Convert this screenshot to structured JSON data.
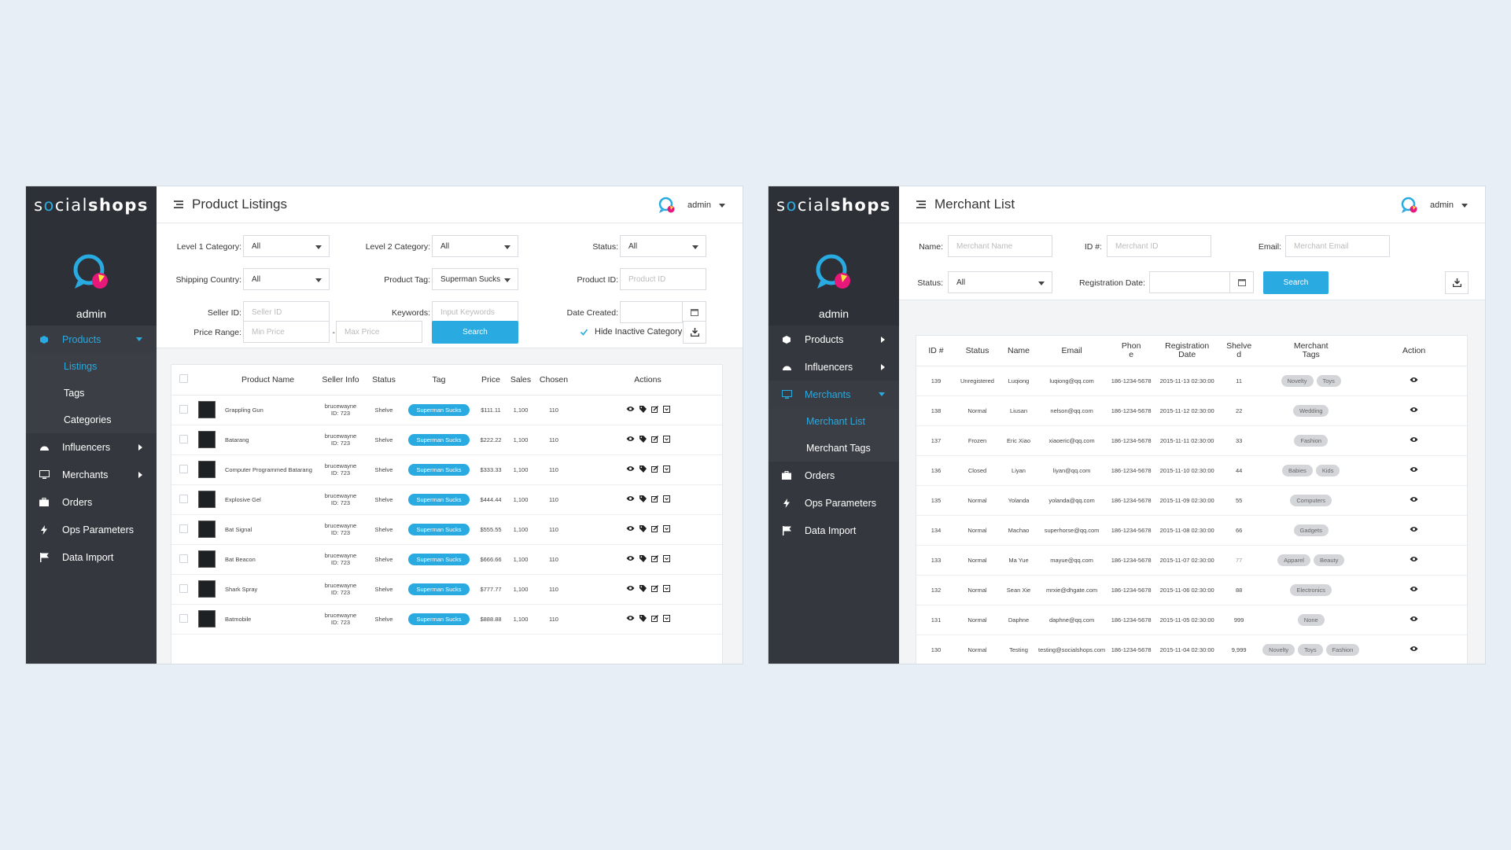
{
  "colors": {
    "accent": "#29aae1",
    "sidebar": "#2d3036",
    "logo_blue": "#29aae1",
    "logo_pink": "#e8187a",
    "logo_yellow": "#f5e53a"
  },
  "brand": {
    "light": "s",
    "o": "o",
    "mid": "cial",
    "bold": "shops"
  },
  "left": {
    "admin_name": "admin",
    "page_title": "Product Listings",
    "user": "admin",
    "nav": {
      "products": "Products",
      "listings": "Listings",
      "tags": "Tags",
      "categories": "Categories",
      "influencers": "Influencers",
      "merchants": "Merchants",
      "orders": "Orders",
      "ops": "Ops Parameters",
      "import": "Data Import"
    },
    "filters": {
      "l1_label": "Level 1 Category:",
      "l1_value": "All",
      "l2_label": "Level 2 Category:",
      "l2_value": "All",
      "status_label": "Status:",
      "status_value": "All",
      "ship_label": "Shipping Country:",
      "ship_value": "All",
      "tag_label": "Product Tag:",
      "tag_value": "Superman Sucks",
      "pid_label": "Product ID:",
      "pid_ph": "Product ID",
      "seller_label": "Seller ID:",
      "seller_ph": "Seller ID",
      "kw_label": "Keywords:",
      "kw_ph": "Input Keywords",
      "date_label": "Date Created:",
      "price_label": "Price Range:",
      "min_ph": "Min Price",
      "dash": "-",
      "max_ph": "Max Price",
      "search": "Search",
      "hide_inactive": "Hide Inactive Category"
    },
    "table": {
      "headers": [
        "Product Name",
        "Seller Info",
        "Status",
        "Tag",
        "Price",
        "Sales",
        "Chosen",
        "Actions"
      ],
      "rows": [
        {
          "name": "Grappling Gun",
          "seller1": "brucewayne",
          "seller2": "ID: 723",
          "status": "Shelve",
          "tag": "Superman Sucks",
          "price": "$111.11",
          "sales": "1,100",
          "chosen": "110"
        },
        {
          "name": "Batarang",
          "seller1": "brucewayne",
          "seller2": "ID: 723",
          "status": "Shelve",
          "tag": "Superman Sucks",
          "price": "$222.22",
          "sales": "1,100",
          "chosen": "110"
        },
        {
          "name": "Computer Programmed Batarang",
          "seller1": "brucewayne",
          "seller2": "ID: 723",
          "status": "Shelve",
          "tag": "Superman Sucks",
          "price": "$333.33",
          "sales": "1,100",
          "chosen": "110"
        },
        {
          "name": "Explosive Gel",
          "seller1": "brucewayne",
          "seller2": "ID: 723",
          "status": "Shelve",
          "tag": "Superman Sucks",
          "price": "$444.44",
          "sales": "1,100",
          "chosen": "110"
        },
        {
          "name": "Bat Signal",
          "seller1": "brucewayne",
          "seller2": "ID: 723",
          "status": "Shelve",
          "tag": "Superman Sucks",
          "price": "$555.55",
          "sales": "1,100",
          "chosen": "110"
        },
        {
          "name": "Bat Beacon",
          "seller1": "brucewayne",
          "seller2": "ID: 723",
          "status": "Shelve",
          "tag": "Superman Sucks",
          "price": "$666.66",
          "sales": "1,100",
          "chosen": "110"
        },
        {
          "name": "Shark Spray",
          "seller1": "brucewayne",
          "seller2": "ID: 723",
          "status": "Shelve",
          "tag": "Superman Sucks",
          "price": "$777.77",
          "sales": "1,100",
          "chosen": "110"
        },
        {
          "name": "Batmobile",
          "seller1": "brucewayne",
          "seller2": "ID: 723",
          "status": "Shelve",
          "tag": "Superman Sucks",
          "price": "$888.88",
          "sales": "1,100",
          "chosen": "110"
        }
      ]
    }
  },
  "right": {
    "admin_name": "admin",
    "page_title": "Merchant List",
    "user": "admin",
    "nav": {
      "products": "Products",
      "influencers": "Influencers",
      "merchants": "Merchants",
      "merchant_list": "Merchant List",
      "merchant_tags": "Merchant Tags",
      "orders": "Orders",
      "ops": "Ops Parameters",
      "import": "Data Import"
    },
    "filters": {
      "name_label": "Name:",
      "name_ph": "Merchant Name",
      "id_label": "ID #:",
      "id_ph": "Merchant ID",
      "email_label": "Email:",
      "email_ph": "Merchant Email",
      "status_label": "Status:",
      "status_value": "All",
      "reg_label": "Registration Date:",
      "search": "Search"
    },
    "table": {
      "headers": {
        "id": "ID #",
        "status": "Status",
        "name": "Name",
        "email": "Email",
        "phone1": "Phon",
        "phone2": "e",
        "reg1": "Registration",
        "reg2": "Date",
        "shelved1": "Shelve",
        "shelved2": "d",
        "tags1": "Merchant",
        "tags2": "Tags",
        "action": "Action"
      },
      "rows": [
        {
          "id": "139",
          "status": "Unregistered",
          "name": "Luqiong",
          "email": "luqiong@qq.com",
          "phone": "186-1234-5678",
          "date": "2015-11-13 02:30:00",
          "shelved": "11",
          "tags": [
            "Novelty",
            "Toys"
          ]
        },
        {
          "id": "138",
          "status": "Normal",
          "name": "Liusan",
          "email": "nelson@qq.com",
          "phone": "186-1234-5678",
          "date": "2015-11-12 02:30:00",
          "shelved": "22",
          "tags": [
            "Wedding"
          ]
        },
        {
          "id": "137",
          "status": "Frozen",
          "name": "Eric Xiao",
          "email": "xiaoeric@qq.com",
          "phone": "186-1234-5678",
          "date": "2015-11-11 02:30:00",
          "shelved": "33",
          "tags": [
            "Fashion"
          ]
        },
        {
          "id": "136",
          "status": "Closed",
          "name": "Liyan",
          "email": "liyan@qq.com",
          "phone": "186-1234-5678",
          "date": "2015-11-10 02:30:00",
          "shelved": "44",
          "tags": [
            "Babies",
            "Kids"
          ]
        },
        {
          "id": "135",
          "status": "Normal",
          "name": "Yolanda",
          "email": "yolanda@qq.com",
          "phone": "186-1234-5678",
          "date": "2015-11-09 02:30:00",
          "shelved": "55",
          "tags": [
            "Computers"
          ]
        },
        {
          "id": "134",
          "status": "Normal",
          "name": "Machao",
          "email": "superhorse@qq.com",
          "phone": "186-1234-5678",
          "date": "2015-11-08 02:30:00",
          "shelved": "66",
          "tags": [
            "Gadgets"
          ]
        },
        {
          "id": "133",
          "status": "Normal",
          "name": "Ma Yue",
          "email": "mayue@qq.com",
          "phone": "186-1234-5678",
          "date": "2015-11-07 02:30:00",
          "shelved": "77",
          "tags": [
            "Apparel",
            "Beauty"
          ]
        },
        {
          "id": "132",
          "status": "Normal",
          "name": "Sean Xie",
          "email": "mrxie@dhgate.com",
          "phone": "186-1234-5678",
          "date": "2015-11-06 02:30:00",
          "shelved": "88",
          "tags": [
            "Electronics"
          ]
        },
        {
          "id": "131",
          "status": "Normal",
          "name": "Daphne",
          "email": "daphne@qq.com",
          "phone": "186-1234-5678",
          "date": "2015-11-05 02:30:00",
          "shelved": "999",
          "tags": [
            "None"
          ]
        },
        {
          "id": "130",
          "status": "Normal",
          "name": "Testing",
          "email": "testing@socialshops.com",
          "phone": "186-1234-5678",
          "date": "2015-11-04 02:30:00",
          "shelved": "9,999",
          "tags": [
            "Novelty",
            "Toys",
            "Fashion"
          ]
        }
      ]
    }
  }
}
